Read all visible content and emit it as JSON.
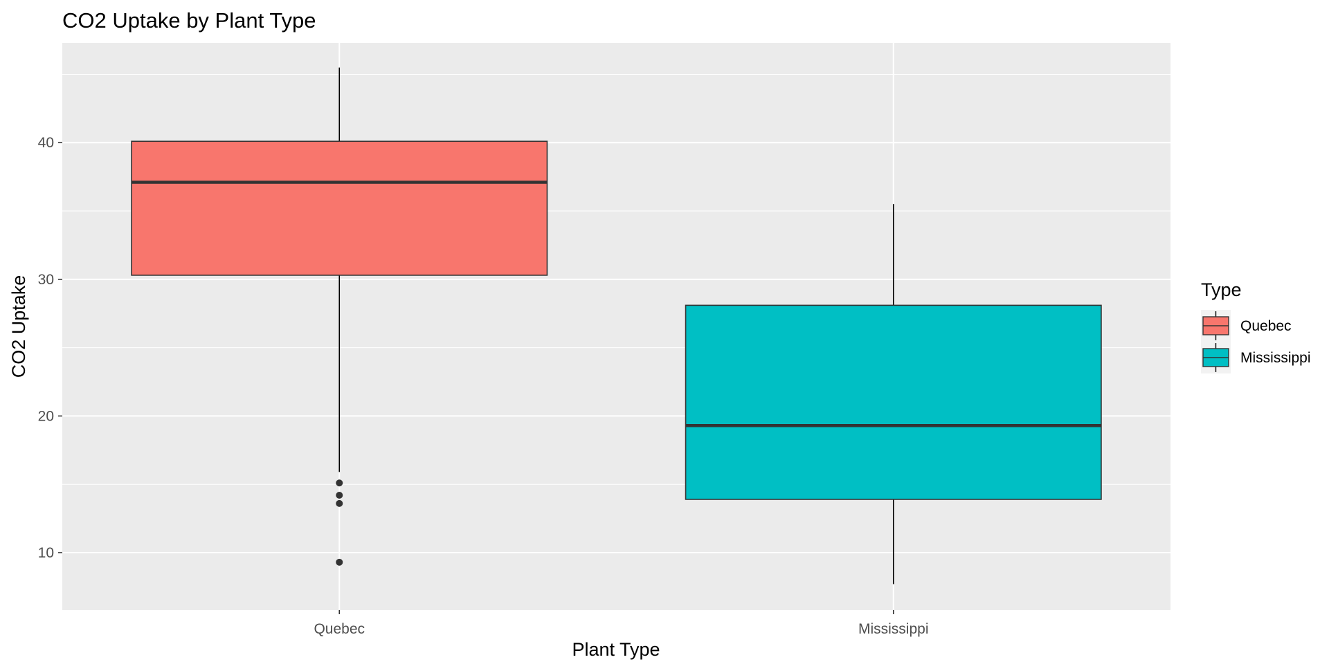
{
  "chart_data": {
    "type": "boxplot",
    "title": "CO2 Uptake by Plant Type",
    "xlabel": "Plant Type",
    "ylabel": "CO2 Uptake",
    "categories": [
      "Quebec",
      "Mississippi"
    ],
    "ylim": [
      5.8,
      47.3
    ],
    "yticks": [
      10,
      20,
      30,
      40
    ],
    "grid": true,
    "legend": {
      "title": "Type",
      "position": "right",
      "entries": [
        {
          "label": "Quebec",
          "color": "#F8766D"
        },
        {
          "label": "Mississippi",
          "color": "#00BFC4"
        }
      ]
    },
    "boxes": [
      {
        "name": "Quebec",
        "color": "#F8766D",
        "whisker_low": 15.9,
        "q1": 30.3,
        "median": 37.1,
        "q3": 40.1,
        "whisker_high": 45.5,
        "outliers": [
          15.1,
          14.2,
          13.6,
          9.3
        ]
      },
      {
        "name": "Mississippi",
        "color": "#00BFC4",
        "whisker_low": 7.7,
        "q1": 13.9,
        "median": 19.3,
        "q3": 28.1,
        "whisker_high": 35.5,
        "outliers": []
      }
    ]
  },
  "colors": {
    "panel_background": "#EBEBEB",
    "grid_major": "#FFFFFF",
    "box_outline": "#333333",
    "whisker": "#000000",
    "outlier": "#333333"
  }
}
